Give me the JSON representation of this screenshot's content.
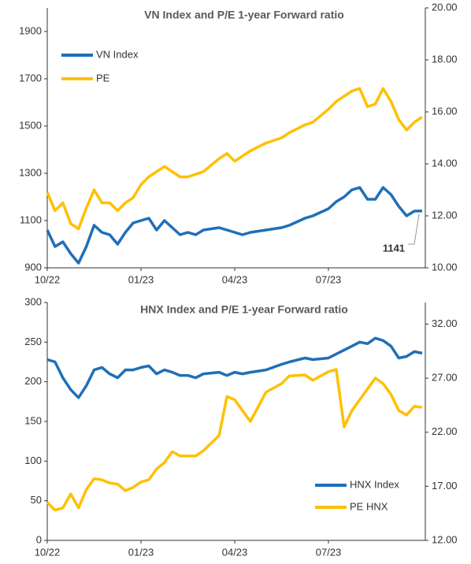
{
  "chart_data": [
    {
      "type": "line",
      "title": "VN Index and P/E 1-year Forward ratio",
      "x": [
        0,
        0.25,
        0.5,
        0.75,
        1,
        1.25,
        1.5,
        1.75,
        2,
        2.25,
        2.5,
        2.75,
        3,
        3.25,
        3.5,
        3.75,
        4,
        4.25,
        4.5,
        4.75,
        5,
        5.5,
        5.75,
        6,
        6.25,
        6.5,
        7,
        7.5,
        7.75,
        8.25,
        8.5,
        9,
        9.25,
        9.5,
        9.75,
        10,
        10.25,
        10.5,
        10.75,
        11,
        11.25,
        11.5,
        11.75,
        12
      ],
      "xlim": [
        0,
        12.1
      ],
      "xticks": [
        {
          "value": 0,
          "label": "10/22"
        },
        {
          "value": 3,
          "label": "01/23"
        },
        {
          "value": 6,
          "label": "04/23"
        },
        {
          "value": 9,
          "label": "07/23"
        }
      ],
      "ylim": [
        900,
        2000
      ],
      "yticks": [
        900,
        1100,
        1300,
        1500,
        1700,
        1900
      ],
      "y2lim": [
        10,
        20
      ],
      "y2ticks": [
        {
          "value": 10,
          "label": "10.00"
        },
        {
          "value": 12,
          "label": "12.00"
        },
        {
          "value": 14,
          "label": "14.00"
        },
        {
          "value": 16,
          "label": "16.00"
        },
        {
          "value": 18,
          "label": "18.00"
        },
        {
          "value": 20,
          "label": "20.00"
        }
      ],
      "legend": "upper left",
      "series": [
        {
          "name": "VN Index",
          "color": "#1f6fb8",
          "values": [
            1060,
            990,
            1010,
            960,
            920,
            990,
            1080,
            1050,
            1040,
            1000,
            1050,
            1090,
            1100,
            1110,
            1060,
            1100,
            1070,
            1040,
            1050,
            1040,
            1060,
            1070,
            1060,
            1050,
            1040,
            1050,
            1060,
            1070,
            1080,
            1110,
            1120,
            1150,
            1180,
            1200,
            1230,
            1240,
            1190,
            1190,
            1240,
            1210,
            1160,
            1120,
            1140,
            1141
          ]
        },
        {
          "name": "PE",
          "color": "#ffc000",
          "axis": "y2",
          "values": [
            12.9,
            12.2,
            12.5,
            11.7,
            11.5,
            12.3,
            13.0,
            12.5,
            12.5,
            12.2,
            12.5,
            12.7,
            13.2,
            13.5,
            13.7,
            13.9,
            13.7,
            13.5,
            13.5,
            13.6,
            13.7,
            14.2,
            14.4,
            14.1,
            14.3,
            14.5,
            14.8,
            15.0,
            15.2,
            15.5,
            15.6,
            16.1,
            16.4,
            16.6,
            16.8,
            16.9,
            16.2,
            16.3,
            16.9,
            16.4,
            15.7,
            15.3,
            15.6,
            15.8
          ]
        }
      ],
      "annotations": [
        {
          "text": "1141"
        }
      ]
    },
    {
      "type": "line",
      "title": "HNX Index and P/E 1-year Forward ratio",
      "x": [
        0,
        0.25,
        0.5,
        0.75,
        1,
        1.25,
        1.5,
        1.75,
        2,
        2.25,
        2.5,
        2.75,
        3,
        3.25,
        3.5,
        3.75,
        4,
        4.25,
        4.5,
        4.75,
        5,
        5.5,
        5.75,
        6,
        6.25,
        6.5,
        7,
        7.5,
        7.75,
        8.25,
        8.5,
        9,
        9.25,
        9.5,
        9.75,
        10,
        10.25,
        10.5,
        10.75,
        11,
        11.25,
        11.5,
        11.75,
        12
      ],
      "xlim": [
        0,
        12.1
      ],
      "xticks": [
        {
          "value": 0,
          "label": "10/22"
        },
        {
          "value": 3,
          "label": "01/23"
        },
        {
          "value": 6,
          "label": "04/23"
        },
        {
          "value": 9,
          "label": "07/23"
        }
      ],
      "ylim": [
        0,
        300
      ],
      "yticks": [
        0,
        50,
        100,
        150,
        200,
        250,
        300
      ],
      "y2lim": [
        12,
        34
      ],
      "y2ticks": [
        {
          "value": 12,
          "label": "12.00"
        },
        {
          "value": 17,
          "label": "17.00"
        },
        {
          "value": 22,
          "label": "22.00"
        },
        {
          "value": 27,
          "label": "27.00"
        },
        {
          "value": 32,
          "label": "32.00"
        }
      ],
      "legend": "lower right",
      "series": [
        {
          "name": "HNX Index",
          "color": "#1f6fb8",
          "values": [
            228,
            225,
            205,
            190,
            180,
            195,
            215,
            218,
            210,
            205,
            215,
            215,
            218,
            220,
            210,
            215,
            212,
            208,
            208,
            205,
            210,
            212,
            208,
            212,
            210,
            212,
            215,
            222,
            225,
            230,
            228,
            230,
            235,
            240,
            245,
            250,
            248,
            255,
            252,
            245,
            230,
            232,
            238,
            236
          ]
        },
        {
          "name": "PE HNX",
          "color": "#ffc000",
          "axis": "y2",
          "values": [
            15.5,
            14.8,
            15.0,
            16.3,
            15.0,
            16.7,
            17.7,
            17.6,
            17.3,
            17.2,
            16.6,
            16.9,
            17.4,
            17.6,
            18.6,
            19.2,
            20.2,
            19.8,
            19.8,
            19.8,
            20.3,
            21.7,
            25.3,
            25.0,
            24.0,
            23.0,
            25.7,
            26.5,
            27.2,
            27.3,
            26.8,
            27.6,
            27.8,
            22.5,
            24.0,
            25.0,
            26.0,
            27.0,
            26.5,
            25.5,
            24.0,
            23.6,
            24.4,
            24.3
          ]
        }
      ]
    }
  ]
}
